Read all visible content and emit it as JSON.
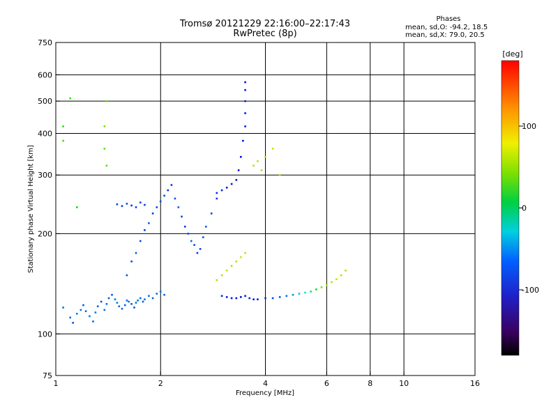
{
  "chart_data": {
    "type": "scatter",
    "title": "Tromsø 20121229 22:16:00–22:17:43",
    "subtitle": "RwPretec (8p)",
    "xlabel": "Frequency [MHz]",
    "ylabel": "Stationary phase Virtual Height [km]",
    "x_scale": "log2",
    "y_scale": "log",
    "xlim": [
      1,
      16
    ],
    "ylim": [
      75,
      750
    ],
    "x_ticks": [
      1,
      2,
      4,
      6,
      8,
      10,
      16
    ],
    "y_ticks": [
      75,
      100,
      200,
      300,
      400,
      500,
      600,
      750
    ],
    "x_gridlines": [
      2,
      4,
      6,
      8,
      10
    ],
    "y_gridlines": [
      100,
      200,
      300,
      400,
      500,
      600
    ],
    "grid": true,
    "info_header": "Phases",
    "info_lines": [
      "mean, sd,O: -94.2, 18.5",
      "mean, sd,X:  79.0, 20.5"
    ],
    "colorbar": {
      "label": "[deg]",
      "ticks": [
        "100",
        "0",
        "-100"
      ],
      "tick_values": [
        100,
        0,
        -100
      ],
      "range": [
        -180,
        180
      ],
      "colormap": "rainbow: black, purple, blue, cyan, green, yellow, orange, red"
    },
    "series": [
      {
        "x": [
          1.05,
          1.1,
          1.12,
          1.15,
          1.18,
          1.2,
          1.22,
          1.25,
          1.28,
          1.3,
          1.32,
          1.35,
          1.38,
          1.4,
          1.42,
          1.45,
          1.48,
          1.5,
          1.52,
          1.55,
          1.58,
          1.6,
          1.62,
          1.65,
          1.68,
          1.7,
          1.72,
          1.75,
          1.78,
          1.8,
          1.85,
          1.9,
          1.95,
          2.0,
          2.05
        ],
        "y": [
          120,
          112,
          108,
          115,
          118,
          122,
          117,
          113,
          109,
          116,
          121,
          125,
          118,
          123,
          128,
          131,
          127,
          124,
          121,
          119,
          122,
          126,
          125,
          123,
          120,
          124,
          126,
          128,
          125,
          127,
          130,
          128,
          132,
          134,
          131
        ],
        "phase": [
          -100,
          -105,
          -110,
          -95,
          -100,
          -108,
          -102,
          -98,
          -104,
          -99,
          -106,
          -110,
          -101,
          -103,
          -107,
          -109,
          -100,
          -97,
          -104,
          -102,
          -106,
          -100,
          -103,
          -108,
          -110,
          -99,
          -101,
          -105,
          -107,
          -100,
          -103,
          -106,
          -102,
          -98,
          -104
        ]
      },
      {
        "x": [
          1.6,
          1.65,
          1.7,
          1.75,
          1.8,
          1.85,
          1.9,
          1.95,
          2.0,
          2.05,
          2.1,
          2.15,
          2.2,
          2.25,
          2.3,
          2.35,
          2.4,
          2.45,
          2.5,
          2.55,
          2.6,
          2.65,
          2.7,
          2.8,
          2.9
        ],
        "y": [
          150,
          165,
          175,
          190,
          205,
          215,
          230,
          240,
          250,
          260,
          270,
          280,
          255,
          240,
          225,
          210,
          200,
          190,
          185,
          175,
          180,
          195,
          210,
          230,
          255
        ],
        "phase": [
          -110,
          -115,
          -105,
          -112,
          -118,
          -108,
          -120,
          -114,
          -110,
          -116,
          -122,
          -118,
          -112,
          -108,
          -115,
          -120,
          -110,
          -105,
          -112,
          -118,
          -114,
          -110,
          -108,
          -116,
          -120
        ]
      },
      {
        "x": [
          1.5,
          1.55,
          1.6,
          1.65,
          1.7,
          1.75,
          1.8
        ],
        "y": [
          245,
          242,
          246,
          243,
          240,
          248,
          244
        ],
        "phase": [
          -115,
          -118,
          -112,
          -120,
          -116,
          -114,
          -119
        ]
      },
      {
        "x": [
          2.9,
          3.0,
          3.1,
          3.2,
          3.3,
          3.35,
          3.4,
          3.45,
          3.5,
          3.5,
          3.5,
          3.5,
          3.5
        ],
        "y": [
          265,
          270,
          275,
          282,
          290,
          310,
          340,
          380,
          420,
          460,
          500,
          540,
          570
        ],
        "phase": [
          -125,
          -128,
          -130,
          -132,
          -134,
          -136,
          -138,
          -135,
          -132,
          -130,
          -128,
          -134,
          -136
        ]
      },
      {
        "x": [
          3.0,
          3.1,
          3.2,
          3.3,
          3.4,
          3.5,
          3.6,
          3.7,
          3.8,
          4.0,
          4.2,
          4.4,
          4.6,
          4.8,
          5.0,
          5.2,
          5.4,
          5.6,
          5.8,
          6.0,
          6.2,
          6.4,
          6.6,
          6.8
        ],
        "y": [
          130,
          129,
          128,
          128,
          129,
          130,
          128,
          127,
          127,
          128,
          128,
          129,
          130,
          131,
          132,
          133,
          134,
          136,
          138,
          140,
          143,
          146,
          150,
          155
        ],
        "phase": [
          -130,
          -132,
          -134,
          -133,
          -135,
          -130,
          -128,
          -132,
          -130,
          -120,
          -115,
          -110,
          -100,
          -90,
          -70,
          -50,
          -20,
          20,
          60,
          75,
          80,
          85,
          82,
          80
        ]
      },
      {
        "x": [
          2.9,
          3.0,
          3.1,
          3.2,
          3.3,
          3.4,
          3.5,
          3.7,
          3.8,
          3.9,
          4.0,
          4.2,
          4.4
        ],
        "y": [
          145,
          150,
          155,
          160,
          165,
          170,
          175,
          320,
          330,
          310,
          340,
          360,
          300
        ],
        "phase": [
          75,
          80,
          85,
          78,
          82,
          90,
          85,
          80,
          82,
          78,
          85,
          88,
          80
        ]
      },
      {
        "x": [
          1.05,
          1.05,
          1.38,
          1.38,
          1.4,
          1.1,
          1.4,
          1.15
        ],
        "y": [
          380,
          420,
          420,
          360,
          320,
          510,
          500,
          240
        ],
        "phase": [
          40,
          30,
          60,
          50,
          45,
          35,
          55,
          20
        ]
      }
    ]
  }
}
